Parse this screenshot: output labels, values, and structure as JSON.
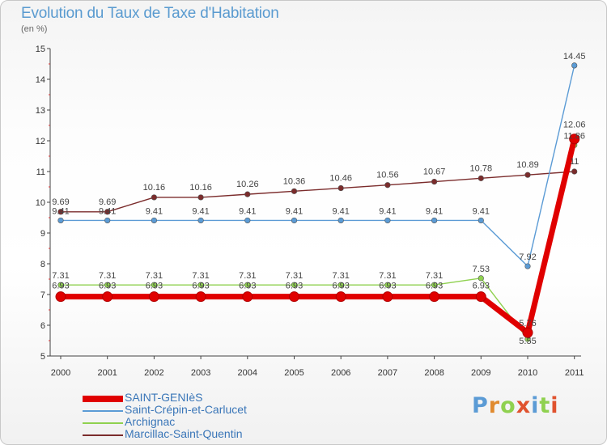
{
  "title": "Evolution du Taux de Taxe d'Habitation",
  "subtitle": "(en %)",
  "logo_text": "Proxiti",
  "chart_data": {
    "type": "line",
    "title": "Evolution du Taux de Taxe d'Habitation",
    "ylabel": "(en %)",
    "xlabel": "",
    "ylim": [
      5,
      15
    ],
    "yticks": [
      5,
      6,
      7,
      8,
      9,
      10,
      11,
      12,
      13,
      14,
      15
    ],
    "grid": false,
    "legend_position": "bottom-left",
    "x": [
      "2000",
      "2001",
      "2002",
      "2003",
      "2004",
      "2005",
      "2006",
      "2007",
      "2008",
      "2009",
      "2010",
      "2011"
    ],
    "series": [
      {
        "name": "SAINT-GENIèS",
        "color": "#e00000",
        "values": [
          6.93,
          6.93,
          6.93,
          6.93,
          6.93,
          6.93,
          6.93,
          6.93,
          6.93,
          6.93,
          5.76,
          12.06
        ],
        "labels": [
          "6.93",
          "6.93",
          "6.93",
          "6.93",
          "6.93",
          "6.93",
          "6.93",
          "6.93",
          "6.93",
          "6.93",
          "5.76",
          ""
        ]
      },
      {
        "name": "Saint-Crépin-et-Carlucet",
        "color": "#5b9bd5",
        "values": [
          9.41,
          9.41,
          9.41,
          9.41,
          9.41,
          9.41,
          9.41,
          9.41,
          9.41,
          9.41,
          7.92,
          14.45
        ],
        "labels": [
          "9.41",
          "9.41",
          "9.41",
          "9.41",
          "9.41",
          "9.41",
          "9.41",
          "9.41",
          "9.41",
          "9.41",
          "7.92",
          "14.45"
        ]
      },
      {
        "name": "Archignac",
        "color": "#8fd14f",
        "values": [
          7.31,
          7.31,
          7.31,
          7.31,
          7.31,
          7.31,
          7.31,
          7.31,
          7.31,
          7.53,
          5.55,
          11.86
        ],
        "labels": [
          "7.31",
          "7.31",
          "7.31",
          "7.31",
          "7.31",
          "7.31",
          "7.31",
          "7.31",
          "7.31",
          "7.53",
          "5.55",
          "11.86"
        ]
      },
      {
        "name": "Marcillac-Saint-Quentin",
        "color": "#7b2c2c",
        "values": [
          9.69,
          9.69,
          10.16,
          10.16,
          10.26,
          10.36,
          10.46,
          10.56,
          10.67,
          10.78,
          10.89,
          11
        ],
        "labels": [
          "9.69",
          "9.69",
          "10.16",
          "10.16",
          "10.26",
          "10.36",
          "10.46",
          "10.56",
          "10.67",
          "10.78",
          "10.89",
          "11"
        ]
      }
    ]
  },
  "legend": {
    "items": [
      {
        "label": "SAINT-GENIèS",
        "color": "#e00000",
        "thick": true
      },
      {
        "label": "Saint-Crépin-et-Carlucet",
        "color": "#5b9bd5",
        "thick": false
      },
      {
        "label": "Archignac",
        "color": "#8fd14f",
        "thick": false
      },
      {
        "label": "Marcillac-Saint-Quentin",
        "color": "#7b2c2c",
        "thick": false
      }
    ]
  }
}
